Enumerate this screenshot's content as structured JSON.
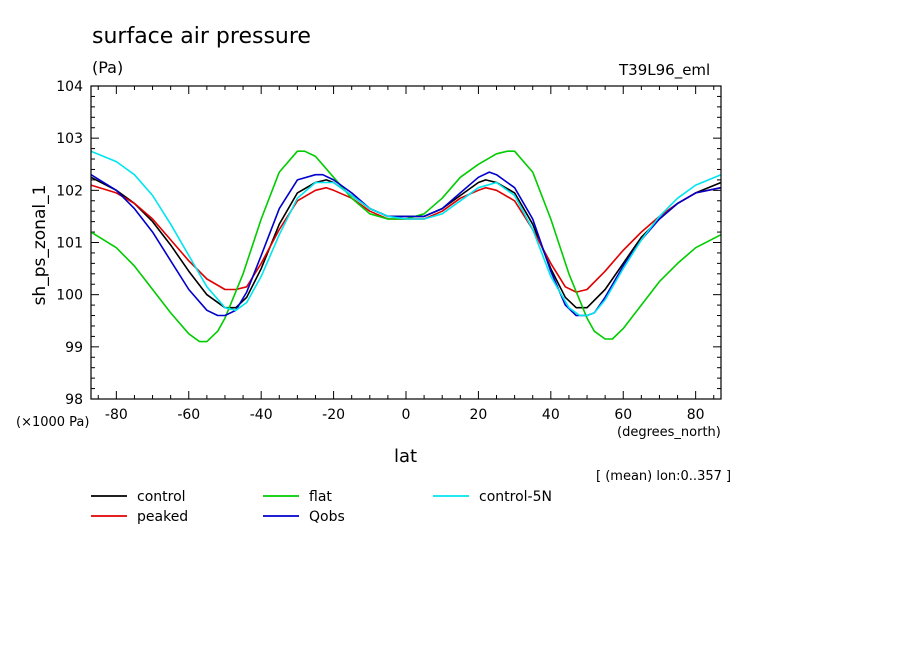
{
  "chart_data": {
    "type": "line",
    "title": "surface air pressure",
    "units": "(Pa)",
    "experiment": "T39L96_eml",
    "ylabel": "sh_ps_zonal_1",
    "xlabel": "lat",
    "xunits": "(degrees_north)",
    "yscale_note": "(×1000 Pa)",
    "subtitle": "[ (mean) lon:0..357 ]",
    "xlim": [
      -87,
      87
    ],
    "ylim": [
      98,
      104
    ],
    "xticks": [
      -80,
      -60,
      -40,
      -20,
      0,
      20,
      40,
      60,
      80
    ],
    "yticks": [
      98,
      99,
      100,
      101,
      102,
      103,
      104
    ],
    "series": [
      {
        "name": "control",
        "color": "#000000",
        "x": [
          -87,
          -80,
          -75,
          -70,
          -65,
          -60,
          -55,
          -50,
          -47,
          -44,
          -40,
          -35,
          -30,
          -25,
          -22,
          -20,
          -15,
          -10,
          -5,
          0,
          5,
          10,
          15,
          20,
          22,
          25,
          30,
          35,
          40,
          44,
          47,
          50,
          55,
          60,
          65,
          70,
          75,
          80,
          87
        ],
        "values": [
          102.25,
          102.0,
          101.75,
          101.4,
          100.95,
          100.45,
          100.0,
          99.75,
          99.75,
          99.95,
          100.5,
          101.35,
          101.95,
          102.15,
          102.2,
          102.15,
          101.9,
          101.65,
          101.5,
          101.5,
          101.5,
          101.65,
          101.9,
          102.15,
          102.2,
          102.15,
          101.95,
          101.35,
          100.5,
          99.95,
          99.75,
          99.75,
          100.1,
          100.6,
          101.1,
          101.45,
          101.75,
          101.95,
          102.15
        ]
      },
      {
        "name": "peaked",
        "color": "#e00000",
        "x": [
          -87,
          -80,
          -75,
          -70,
          -65,
          -60,
          -55,
          -50,
          -47,
          -44,
          -40,
          -35,
          -30,
          -25,
          -22,
          -20,
          -15,
          -10,
          -5,
          0,
          5,
          10,
          15,
          20,
          22,
          25,
          30,
          35,
          40,
          44,
          47,
          50,
          55,
          60,
          65,
          70,
          75,
          80,
          87
        ],
        "values": [
          102.1,
          101.95,
          101.75,
          101.45,
          101.05,
          100.65,
          100.3,
          100.1,
          100.1,
          100.15,
          100.6,
          101.25,
          101.8,
          102.0,
          102.05,
          102.0,
          101.85,
          101.6,
          101.45,
          101.45,
          101.45,
          101.6,
          101.85,
          102.0,
          102.05,
          102.0,
          101.8,
          101.25,
          100.6,
          100.15,
          100.05,
          100.1,
          100.45,
          100.85,
          101.2,
          101.5,
          101.75,
          101.95,
          102.05
        ]
      },
      {
        "name": "flat",
        "color": "#00cc00",
        "x": [
          -87,
          -80,
          -75,
          -70,
          -65,
          -60,
          -57,
          -55,
          -52,
          -50,
          -45,
          -40,
          -35,
          -30,
          -28,
          -25,
          -20,
          -15,
          -10,
          -5,
          0,
          5,
          10,
          15,
          20,
          25,
          28,
          30,
          35,
          40,
          45,
          50,
          52,
          55,
          57,
          60,
          65,
          70,
          75,
          80,
          87
        ],
        "values": [
          101.2,
          100.9,
          100.55,
          100.1,
          99.65,
          99.25,
          99.1,
          99.1,
          99.3,
          99.55,
          100.4,
          101.45,
          102.35,
          102.75,
          102.75,
          102.65,
          102.25,
          101.85,
          101.55,
          101.45,
          101.45,
          101.55,
          101.85,
          102.25,
          102.5,
          102.7,
          102.75,
          102.75,
          102.35,
          101.45,
          100.4,
          99.55,
          99.3,
          99.15,
          99.15,
          99.35,
          99.8,
          100.25,
          100.6,
          100.9,
          101.15
        ]
      },
      {
        "name": "Qobs",
        "color": "#0000cc",
        "x": [
          -87,
          -80,
          -75,
          -70,
          -65,
          -60,
          -55,
          -52,
          -50,
          -47,
          -44,
          -40,
          -35,
          -30,
          -25,
          -23,
          -20,
          -15,
          -10,
          -5,
          0,
          5,
          10,
          15,
          20,
          23,
          25,
          30,
          35,
          40,
          44,
          47,
          50,
          52,
          55,
          60,
          65,
          70,
          75,
          80,
          87
        ],
        "values": [
          102.3,
          102.0,
          101.65,
          101.2,
          100.65,
          100.1,
          99.7,
          99.6,
          99.6,
          99.7,
          100.05,
          100.75,
          101.65,
          102.2,
          102.3,
          102.3,
          102.2,
          101.95,
          101.65,
          101.5,
          101.5,
          101.5,
          101.65,
          101.95,
          102.25,
          102.35,
          102.3,
          102.05,
          101.45,
          100.45,
          99.8,
          99.6,
          99.6,
          99.65,
          99.95,
          100.55,
          101.05,
          101.45,
          101.75,
          101.95,
          102.05
        ]
      },
      {
        "name": "control-5N",
        "color": "#00e5ee",
        "x": [
          -87,
          -80,
          -75,
          -70,
          -65,
          -60,
          -55,
          -50,
          -47,
          -44,
          -40,
          -35,
          -30,
          -25,
          -20,
          -15,
          -10,
          -5,
          0,
          5,
          10,
          15,
          20,
          25,
          30,
          35,
          40,
          45,
          48,
          50,
          52,
          55,
          60,
          65,
          70,
          75,
          80,
          87
        ],
        "values": [
          102.75,
          102.55,
          102.3,
          101.9,
          101.35,
          100.75,
          100.15,
          99.75,
          99.7,
          99.85,
          100.35,
          101.15,
          101.85,
          102.15,
          102.15,
          101.9,
          101.65,
          101.5,
          101.45,
          101.45,
          101.55,
          101.8,
          102.05,
          102.15,
          101.9,
          101.25,
          100.35,
          99.75,
          99.6,
          99.6,
          99.65,
          99.9,
          100.5,
          101.05,
          101.5,
          101.85,
          102.1,
          102.3
        ]
      }
    ]
  }
}
